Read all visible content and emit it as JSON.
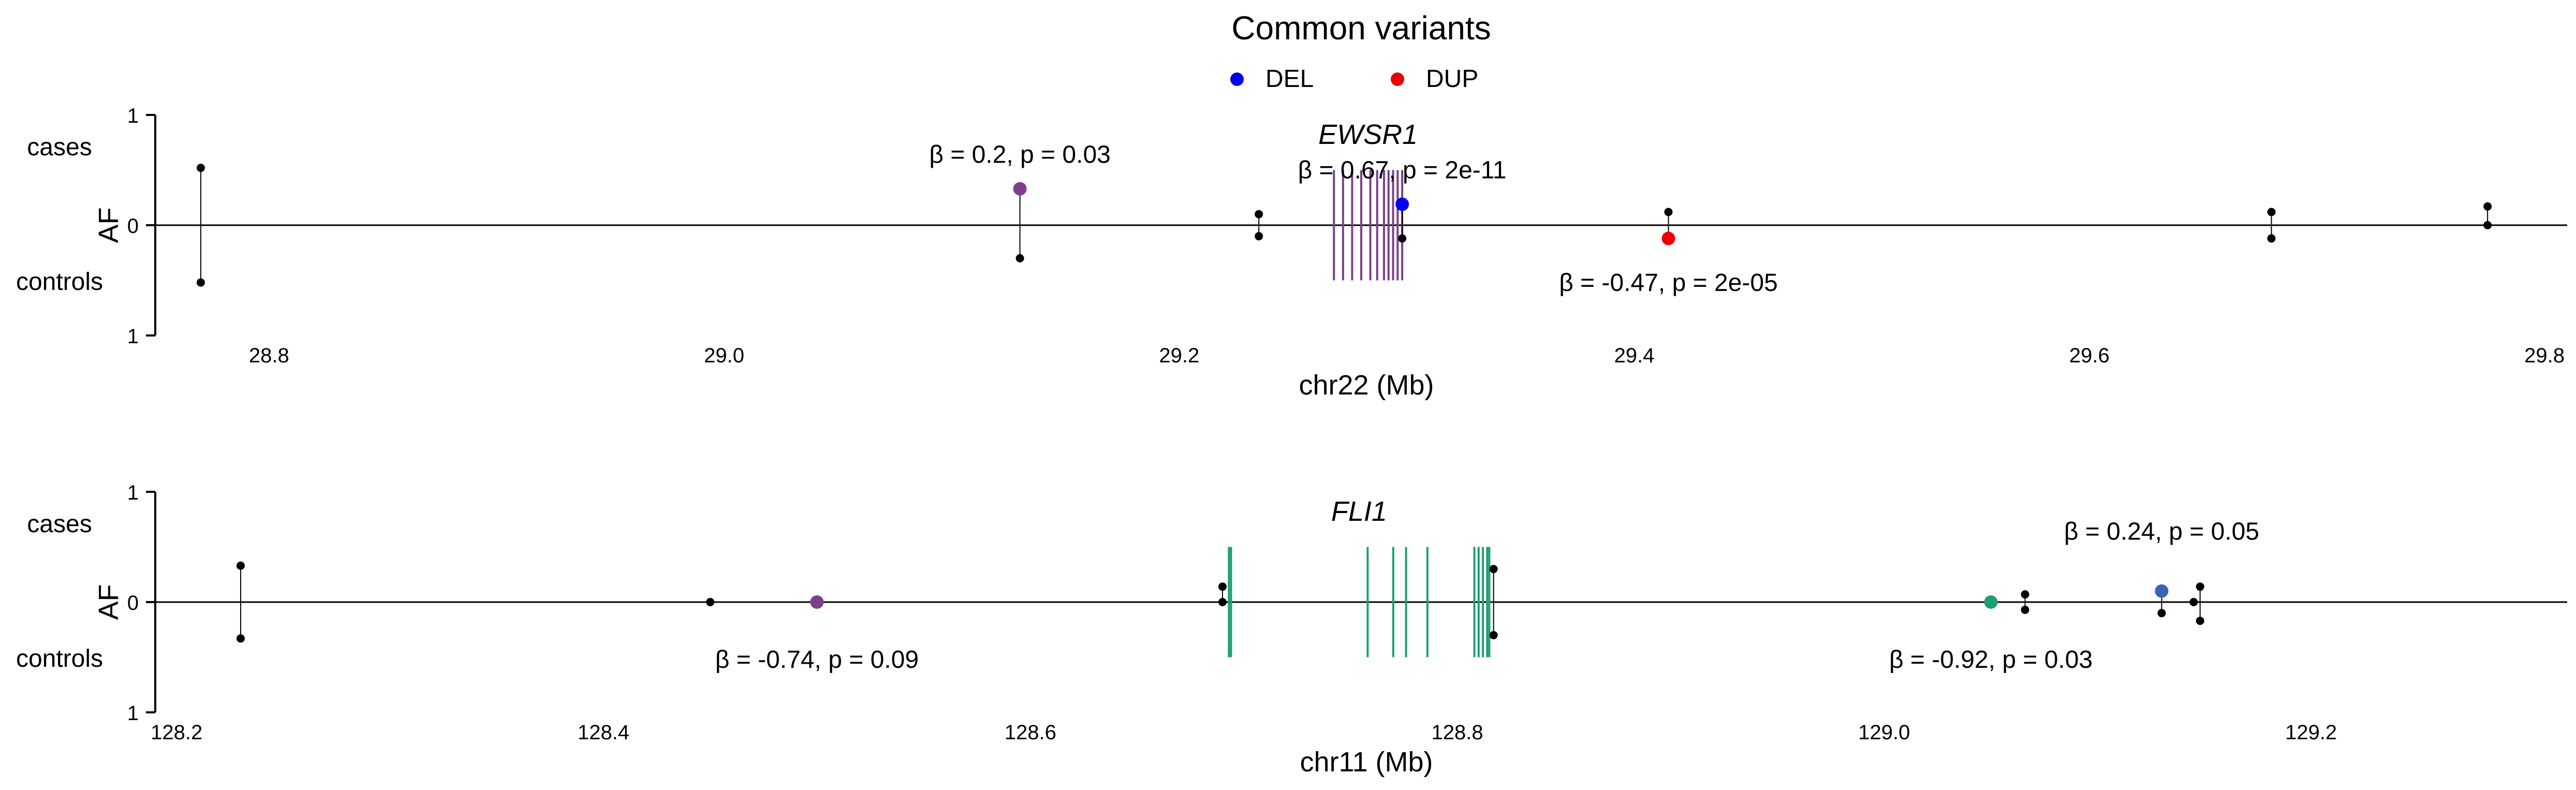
{
  "title": "Common variants",
  "legend": {
    "placement": "top-center",
    "items": [
      {
        "label": "DEL",
        "color": "#0000ee"
      },
      {
        "label": "DUP",
        "color": "#ee0000"
      }
    ]
  },
  "chart_data": [
    {
      "type": "scatter",
      "gene": "EWSR1",
      "xlabel": "chr22 (Mb)",
      "ylabel": "AF",
      "upper_label": "cases",
      "lower_label": "controls",
      "y_tick_labels": [
        "1",
        "0",
        "1"
      ],
      "xlim": [
        28.75,
        29.81
      ],
      "x_ticks": [
        28.8,
        29.0,
        29.2,
        29.4,
        29.6,
        29.8
      ],
      "x_tick_labels": [
        "28.8",
        "29.0",
        "29.2",
        "29.4",
        "29.6",
        "29.8"
      ],
      "ylim": [
        -1,
        1
      ],
      "gene_color": "#7b3f8c",
      "exons": [
        29.268,
        29.272,
        29.276,
        29.28,
        29.284,
        29.287,
        29.29,
        29.292,
        29.294,
        29.296,
        29.298
      ],
      "exon_height": 0.5,
      "variants": [
        {
          "x": 28.77,
          "case": 0.52,
          "control": 0.52
        },
        {
          "x": 29.13,
          "case": 0.33,
          "control": 0.3,
          "color": "#7b3f8c",
          "beta": 0.2,
          "p": "0.03"
        },
        {
          "x": 29.235,
          "case": 0.1,
          "control": 0.1
        },
        {
          "x": 29.298,
          "case": 0.19,
          "control": 0.12,
          "color": "#0000ee",
          "beta": 0.67,
          "p": "2e-11"
        },
        {
          "x": 29.415,
          "case": 0.12,
          "control": 0.12,
          "color": "#ee0000",
          "beta": -0.47,
          "p": "2e-05"
        },
        {
          "x": 29.68,
          "case": 0.12,
          "control": 0.12
        },
        {
          "x": 29.775,
          "case": 0.17,
          "control": 0.0
        }
      ],
      "annotations": [
        {
          "text": "β = 0.2, p = 0.03",
          "x": 29.13,
          "y": 0.64
        },
        {
          "text": "β = 0.67, p = 2e-11",
          "x": 29.298,
          "y": 0.5
        },
        {
          "text": "β = -0.47, p = 2e-05",
          "x": 29.415,
          "y": -0.52
        }
      ]
    },
    {
      "type": "scatter",
      "gene": "FLI1",
      "xlabel": "chr11 (Mb)",
      "ylabel": "AF",
      "upper_label": "cases",
      "lower_label": "controls",
      "y_tick_labels": [
        "1",
        "0",
        "1"
      ],
      "xlim": [
        128.19,
        129.32
      ],
      "x_ticks": [
        128.2,
        128.4,
        128.6,
        128.8,
        129.0,
        129.2
      ],
      "x_tick_labels": [
        "128.2",
        "128.4",
        "128.6",
        "128.8",
        "129.0",
        "129.2"
      ],
      "ylim": [
        -1,
        1
      ],
      "gene_color": "#1f9e74",
      "exons": [
        128.693,
        128.694,
        128.758,
        128.77,
        128.776,
        128.786,
        128.808,
        128.81,
        128.812,
        128.814,
        128.815
      ],
      "exon_height": 0.5,
      "variants": [
        {
          "x": 128.23,
          "case": 0.33,
          "control": 0.33
        },
        {
          "x": 128.45,
          "case": 0.0,
          "control": 0.0
        },
        {
          "x": 128.5,
          "case": 0.0,
          "control": 0.0,
          "color": "#7b3f8c",
          "beta": -0.74,
          "p": "0.09"
        },
        {
          "x": 128.69,
          "case": 0.14,
          "control": 0.0
        },
        {
          "x": 128.817,
          "case": 0.3,
          "control": 0.3
        },
        {
          "x": 129.05,
          "case": 0.0,
          "control": 0.0,
          "color": "#1f9e74",
          "beta": -0.92,
          "p": "0.03"
        },
        {
          "x": 129.066,
          "case": 0.07,
          "control": 0.07
        },
        {
          "x": 129.13,
          "case": 0.1,
          "control": 0.1,
          "color": "#3d63b8",
          "beta": 0.24,
          "p": "0.05"
        },
        {
          "x": 129.145,
          "case": 0.0,
          "control": 0.0
        },
        {
          "x": 129.148,
          "case": 0.14,
          "control": 0.17
        }
      ],
      "annotations": [
        {
          "text": "β = -0.74, p = 0.09",
          "x": 128.5,
          "y": -0.52
        },
        {
          "text": "β = -0.92, p = 0.03",
          "x": 129.05,
          "y": -0.52
        },
        {
          "text": "β = 0.24, p = 0.05",
          "x": 129.13,
          "y": 0.64
        }
      ]
    }
  ]
}
